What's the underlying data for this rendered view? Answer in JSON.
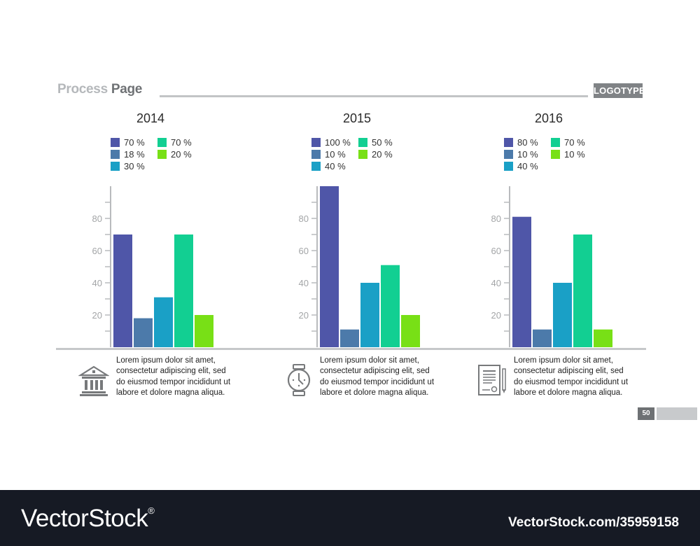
{
  "header": {
    "title_light": "Process",
    "title_strong": "Page",
    "logotype": "LOGOTYPE"
  },
  "colors": {
    "s1": "#4f56a8",
    "s2": "#4c7aaa",
    "s3": "#1aa0c6",
    "s4": "#12cf92",
    "s5": "#78e016"
  },
  "chart_data": [
    {
      "type": "bar",
      "title": "2014",
      "categories": [
        "70 %",
        "18 %",
        "30 %",
        "70 %",
        "20 %"
      ],
      "values": [
        70,
        18,
        31,
        70,
        20
      ],
      "legend": [
        "70 %",
        "18 %",
        "30 %",
        "70 %",
        "20 %"
      ],
      "ylim": [
        0,
        100
      ],
      "yticks": [
        "20",
        "40",
        "60",
        "80"
      ]
    },
    {
      "type": "bar",
      "title": "2015",
      "categories": [
        "100 %",
        "10 %",
        "40 %",
        "50 %",
        "20 %"
      ],
      "values": [
        100,
        11,
        40,
        51,
        20
      ],
      "legend": [
        "100 %",
        "10 %",
        "40 %",
        "50 %",
        "20 %"
      ],
      "ylim": [
        0,
        100
      ],
      "yticks": [
        "20",
        "40",
        "60",
        "80"
      ]
    },
    {
      "type": "bar",
      "title": "2016",
      "categories": [
        "80 %",
        "10 %",
        "40 %",
        "70 %",
        "10 %"
      ],
      "values": [
        81,
        11,
        40,
        70,
        11
      ],
      "legend": [
        "80 %",
        "10 %",
        "40 %",
        "70 %",
        "10 %"
      ],
      "ylim": [
        0,
        100
      ],
      "yticks": [
        "20",
        "40",
        "60",
        "80"
      ]
    }
  ],
  "descriptions": [
    {
      "icon": "bank-icon",
      "text": "Lorem ipsum dolor sit amet, consectetur adipiscing elit, sed do eiusmod tempor incididunt ut labore et dolore magna aliqua."
    },
    {
      "icon": "clock-icon",
      "text": "Lorem ipsum dolor sit amet, consectetur adipiscing elit, sed do eiusmod tempor incididunt ut labore et dolore magna aliqua."
    },
    {
      "icon": "certificate-icon",
      "text": "Lorem ipsum dolor sit amet, consectetur adipiscing elit, sed do eiusmod tempor incididunt ut labore et dolore magna aliqua."
    }
  ],
  "page_number": "50",
  "watermark": {
    "brand": "VectorStock",
    "reg": "®",
    "url": "VectorStock.com/35959158"
  }
}
